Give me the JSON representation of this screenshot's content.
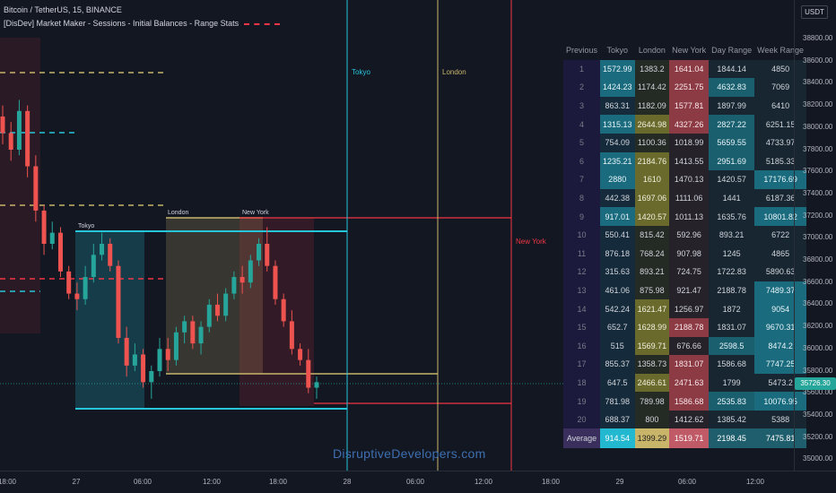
{
  "header": {
    "symbol": "Bitcoin / TetherUS, 15, BINANCE",
    "indicator": "[DisDev] Market Maker - Sessions - Initial Balances - Range Stats"
  },
  "price_axis": {
    "currency": "USDT",
    "labels": [
      "38800.00",
      "38600.00",
      "38400.00",
      "38200.00",
      "38000.00",
      "37800.00",
      "37600.00",
      "37400.00",
      "37200.00",
      "37000.00",
      "36800.00",
      "36600.00",
      "36400.00",
      "36200.00",
      "36000.00",
      "35800.00",
      "35600.00",
      "35400.00",
      "35200.00",
      "35000.00"
    ],
    "current_price": "35726.30"
  },
  "time_axis": {
    "labels": [
      "18:00",
      "27",
      "06:00",
      "12:00",
      "18:00",
      "28",
      "06:00",
      "12:00",
      "18:00",
      "29",
      "06:00",
      "12:00"
    ]
  },
  "session_labels": {
    "tokyo_box": "Tokyo",
    "london_box": "London",
    "newyork_box": "New York",
    "tokyo_vline": "Tokyo",
    "london_vline": "London",
    "newyork_level": "New York"
  },
  "colors": {
    "tokyo": "#26c6da",
    "london": "#c8b56a",
    "newyork": "#f23645",
    "up_candle": "#26a69a",
    "down_candle": "#ef5350"
  },
  "watermark": "DisruptiveDevelopers.com",
  "stats_table": {
    "headers": [
      "Previous",
      "Tokyo",
      "London",
      "New York",
      "Day Range",
      "Week Range"
    ],
    "rows": [
      {
        "idx": "1",
        "tokyo": "1572.99",
        "london": "1383.2",
        "newyork": "1641.04",
        "day": "1844.14",
        "week": "4850",
        "hl": [
          1,
          0,
          1,
          0,
          0
        ]
      },
      {
        "idx": "2",
        "tokyo": "1424.23",
        "london": "1174.42",
        "newyork": "2251.75",
        "day": "4632.83",
        "week": "7069",
        "hl": [
          1,
          0,
          1,
          1,
          0
        ]
      },
      {
        "idx": "3",
        "tokyo": "863.31",
        "london": "1182.09",
        "newyork": "1577.81",
        "day": "1897.99",
        "week": "6410",
        "hl": [
          0,
          0,
          1,
          0,
          0
        ]
      },
      {
        "idx": "4",
        "tokyo": "1315.13",
        "london": "2644.98",
        "newyork": "4327.26",
        "day": "2827.22",
        "week": "6251.15",
        "hl": [
          1,
          1,
          1,
          1,
          0
        ]
      },
      {
        "idx": "5",
        "tokyo": "754.09",
        "london": "1100.36",
        "newyork": "1018.99",
        "day": "5659.55",
        "week": "4733.97",
        "hl": [
          0,
          0,
          0,
          1,
          0
        ]
      },
      {
        "idx": "6",
        "tokyo": "1235.21",
        "london": "2184.76",
        "newyork": "1413.55",
        "day": "2951.69",
        "week": "5185.33",
        "hl": [
          1,
          1,
          0,
          1,
          0
        ]
      },
      {
        "idx": "7",
        "tokyo": "2880",
        "london": "1610",
        "newyork": "1470.13",
        "day": "1420.57",
        "week": "17176.69",
        "hl": [
          1,
          1,
          0,
          0,
          1
        ]
      },
      {
        "idx": "8",
        "tokyo": "442.38",
        "london": "1697.06",
        "newyork": "1111.06",
        "day": "1441",
        "week": "6187.36",
        "hl": [
          0,
          1,
          0,
          0,
          0
        ]
      },
      {
        "idx": "9",
        "tokyo": "917.01",
        "london": "1420.57",
        "newyork": "1011.13",
        "day": "1635.76",
        "week": "10801.82",
        "hl": [
          1,
          1,
          0,
          0,
          1
        ]
      },
      {
        "idx": "10",
        "tokyo": "550.41",
        "london": "815.42",
        "newyork": "592.96",
        "day": "893.21",
        "week": "6722",
        "hl": [
          0,
          0,
          0,
          0,
          0
        ]
      },
      {
        "idx": "11",
        "tokyo": "876.18",
        "london": "768.24",
        "newyork": "907.98",
        "day": "1245",
        "week": "4865",
        "hl": [
          0,
          0,
          0,
          0,
          0
        ]
      },
      {
        "idx": "12",
        "tokyo": "315.63",
        "london": "893.21",
        "newyork": "724.75",
        "day": "1722.83",
        "week": "5890.63",
        "hl": [
          0,
          0,
          0,
          0,
          0
        ]
      },
      {
        "idx": "13",
        "tokyo": "461.06",
        "london": "875.98",
        "newyork": "921.47",
        "day": "2188.78",
        "week": "7489.37",
        "hl": [
          0,
          0,
          0,
          0,
          1
        ]
      },
      {
        "idx": "14",
        "tokyo": "542.24",
        "london": "1621.47",
        "newyork": "1256.97",
        "day": "1872",
        "week": "9054",
        "hl": [
          0,
          1,
          0,
          0,
          1
        ]
      },
      {
        "idx": "15",
        "tokyo": "652.7",
        "london": "1628.99",
        "newyork": "2188.78",
        "day": "1831.07",
        "week": "9670.31",
        "hl": [
          0,
          1,
          1,
          0,
          1
        ]
      },
      {
        "idx": "16",
        "tokyo": "515",
        "london": "1569.71",
        "newyork": "676.66",
        "day": "2598.5",
        "week": "8474.2",
        "hl": [
          0,
          1,
          0,
          1,
          1
        ]
      },
      {
        "idx": "17",
        "tokyo": "855.37",
        "london": "1358.73",
        "newyork": "1831.07",
        "day": "1586.68",
        "week": "7747.25",
        "hl": [
          0,
          0,
          1,
          0,
          1
        ]
      },
      {
        "idx": "18",
        "tokyo": "647.5",
        "london": "2466.61",
        "newyork": "2471.63",
        "day": "1799",
        "week": "5473.2",
        "hl": [
          0,
          1,
          1,
          0,
          0
        ]
      },
      {
        "idx": "19",
        "tokyo": "781.98",
        "london": "789.98",
        "newyork": "1586.68",
        "day": "2535.83",
        "week": "10076.95",
        "hl": [
          0,
          0,
          1,
          1,
          1
        ]
      },
      {
        "idx": "20",
        "tokyo": "688.37",
        "london": "800",
        "newyork": "1412.62",
        "day": "1385.42",
        "week": "5388",
        "hl": [
          0,
          0,
          0,
          0,
          0
        ]
      }
    ],
    "average": {
      "label": "Average",
      "tokyo": "914.54",
      "london": "1399.29",
      "newyork": "1519.71",
      "day": "2198.45",
      "week": "7475.81"
    }
  },
  "candles": [
    [
      38100,
      38200,
      37850,
      37950
    ],
    [
      37950,
      38050,
      37700,
      37800
    ],
    [
      37800,
      38250,
      37750,
      38150
    ],
    [
      38150,
      38200,
      37550,
      37650
    ],
    [
      37650,
      37750,
      37150,
      37250
    ],
    [
      37250,
      37300,
      36850,
      36950
    ],
    [
      36950,
      37150,
      36900,
      37050
    ],
    [
      37050,
      37100,
      36650,
      36700
    ],
    [
      36700,
      36750,
      36450,
      36500
    ],
    [
      36500,
      36600,
      36350,
      36450
    ],
    [
      36450,
      36750,
      36400,
      36650
    ],
    [
      36650,
      36950,
      36600,
      36850
    ],
    [
      36850,
      37050,
      36800,
      36950
    ],
    [
      36950,
      37000,
      36700,
      36750
    ],
    [
      36750,
      36800,
      36050,
      36100
    ],
    [
      36100,
      36200,
      35750,
      35850
    ],
    [
      35850,
      36050,
      35800,
      35950
    ],
    [
      35950,
      36000,
      35650,
      35700
    ],
    [
      35700,
      35850,
      35550,
      35800
    ],
    [
      35800,
      36100,
      35750,
      36000
    ],
    [
      36000,
      36100,
      35800,
      35900
    ],
    [
      35900,
      36200,
      35850,
      36150
    ],
    [
      36150,
      36300,
      36050,
      36250
    ],
    [
      36250,
      36300,
      36000,
      36050
    ],
    [
      36050,
      36250,
      35950,
      36200
    ],
    [
      36200,
      36450,
      36150,
      36400
    ],
    [
      36400,
      36500,
      36250,
      36300
    ],
    [
      36300,
      36550,
      36250,
      36500
    ],
    [
      36500,
      36700,
      36450,
      36650
    ],
    [
      36650,
      36750,
      36500,
      36600
    ],
    [
      36600,
      36850,
      36550,
      36800
    ],
    [
      36800,
      37000,
      36750,
      36950
    ],
    [
      36950,
      37100,
      36700,
      36750
    ],
    [
      36750,
      36800,
      36400,
      36450
    ],
    [
      36450,
      36500,
      36200,
      36250
    ],
    [
      36250,
      36350,
      35950,
      36000
    ],
    [
      36000,
      36050,
      35850,
      35900
    ],
    [
      35900,
      36000,
      35600,
      35650
    ],
    [
      35650,
      35750,
      35550,
      35700
    ]
  ]
}
